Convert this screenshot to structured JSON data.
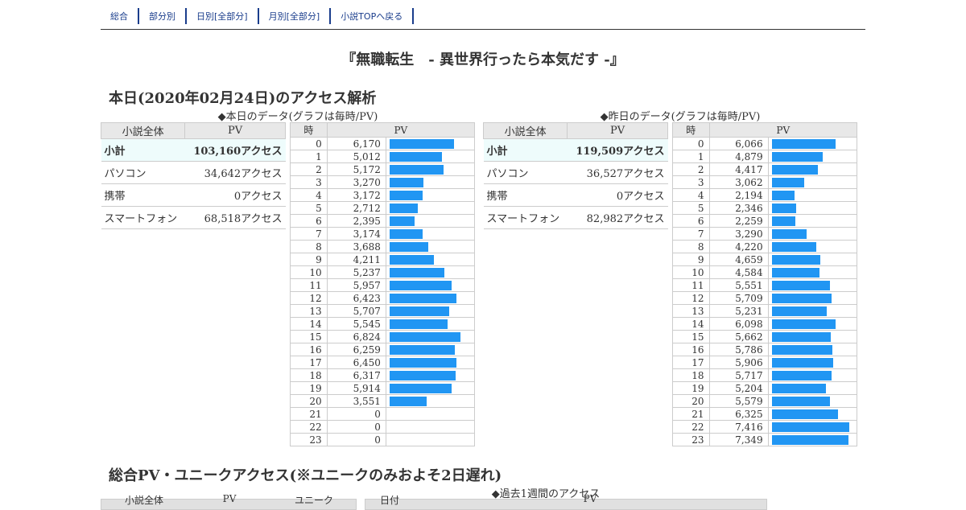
{
  "nav": [
    "総合",
    "部分別",
    "日別[全部分]",
    "月別[全部分]",
    "小説TOPへ戻る"
  ],
  "title": "『無職転生　- 異世界行ったら本気だす -』",
  "today_heading": "本日(2020年02月24日)のアクセス解析",
  "today_caption": "◆本日のデータ(グラフは毎時/PV)",
  "yesterday_caption": "◆昨日のデータ(グラフは毎時/PV)",
  "summary_headers": [
    "小説全体",
    "PV"
  ],
  "hourly_headers": [
    "時",
    "PV"
  ],
  "today_summary": [
    {
      "label": "小計",
      "value": "103,160アクセス"
    },
    {
      "label": "パソコン",
      "value": "34,642アクセス"
    },
    {
      "label": "携帯",
      "value": "0アクセス"
    },
    {
      "label": "スマートフォン",
      "value": "68,518アクセス"
    }
  ],
  "yesterday_summary": [
    {
      "label": "小計",
      "value": "119,509アクセス"
    },
    {
      "label": "パソコン",
      "value": "36,527アクセス"
    },
    {
      "label": "携帯",
      "value": "0アクセス"
    },
    {
      "label": "スマートフォン",
      "value": "82,982アクセス"
    }
  ],
  "chart_data": [
    {
      "type": "bar",
      "title": "◆本日のデータ(グラフは毎時/PV)",
      "categories": [
        "0",
        "1",
        "2",
        "3",
        "4",
        "5",
        "6",
        "7",
        "8",
        "9",
        "10",
        "11",
        "12",
        "13",
        "14",
        "15",
        "16",
        "17",
        "18",
        "19",
        "20",
        "21",
        "22",
        "23"
      ],
      "values": [
        6170,
        5012,
        5172,
        3270,
        3172,
        2712,
        2395,
        3174,
        3688,
        4211,
        5237,
        5957,
        6423,
        5707,
        5545,
        6824,
        6259,
        6450,
        6317,
        5914,
        3551,
        0,
        0,
        0
      ],
      "labels": [
        "6,170",
        "5,012",
        "5,172",
        "3,270",
        "3,172",
        "2,712",
        "2,395",
        "3,174",
        "3,688",
        "4,211",
        "5,237",
        "5,957",
        "6,423",
        "5,707",
        "5,545",
        "6,824",
        "6,259",
        "6,450",
        "6,317",
        "5,914",
        "3,551",
        "0",
        "0",
        "0"
      ],
      "xlabel": "時",
      "ylabel": "PV"
    },
    {
      "type": "bar",
      "title": "◆昨日のデータ(グラフは毎時/PV)",
      "categories": [
        "0",
        "1",
        "2",
        "3",
        "4",
        "5",
        "6",
        "7",
        "8",
        "9",
        "10",
        "11",
        "12",
        "13",
        "14",
        "15",
        "16",
        "17",
        "18",
        "19",
        "20",
        "21",
        "22",
        "23"
      ],
      "values": [
        6066,
        4879,
        4417,
        3062,
        2194,
        2346,
        2259,
        3290,
        4220,
        4659,
        4584,
        5551,
        5709,
        5231,
        6098,
        5662,
        5786,
        5906,
        5717,
        5204,
        5579,
        6325,
        7416,
        7349
      ],
      "labels": [
        "6,066",
        "4,879",
        "4,417",
        "3,062",
        "2,194",
        "2,346",
        "2,259",
        "3,290",
        "4,220",
        "4,659",
        "4,584",
        "5,551",
        "5,709",
        "5,231",
        "6,098",
        "5,662",
        "5,786",
        "5,906",
        "5,717",
        "5,204",
        "5,579",
        "6,325",
        "7,416",
        "7,349"
      ],
      "xlabel": "時",
      "ylabel": "PV"
    }
  ],
  "total_heading": "総合PV・ユニークアクセス(※ユニークのみおよそ2日遅れ)",
  "week_caption": "◆過去1週間のアクセス",
  "bottom_headers_left": [
    "小説全体",
    "PV",
    "ユニーク"
  ],
  "bottom_headers_right": [
    "日付",
    "PV"
  ],
  "colors": {
    "bar": "#2196f3",
    "nav": "#1a3d8c",
    "subtotal_bg": "#eefcfc",
    "header_bg": "#e8e8e8"
  }
}
